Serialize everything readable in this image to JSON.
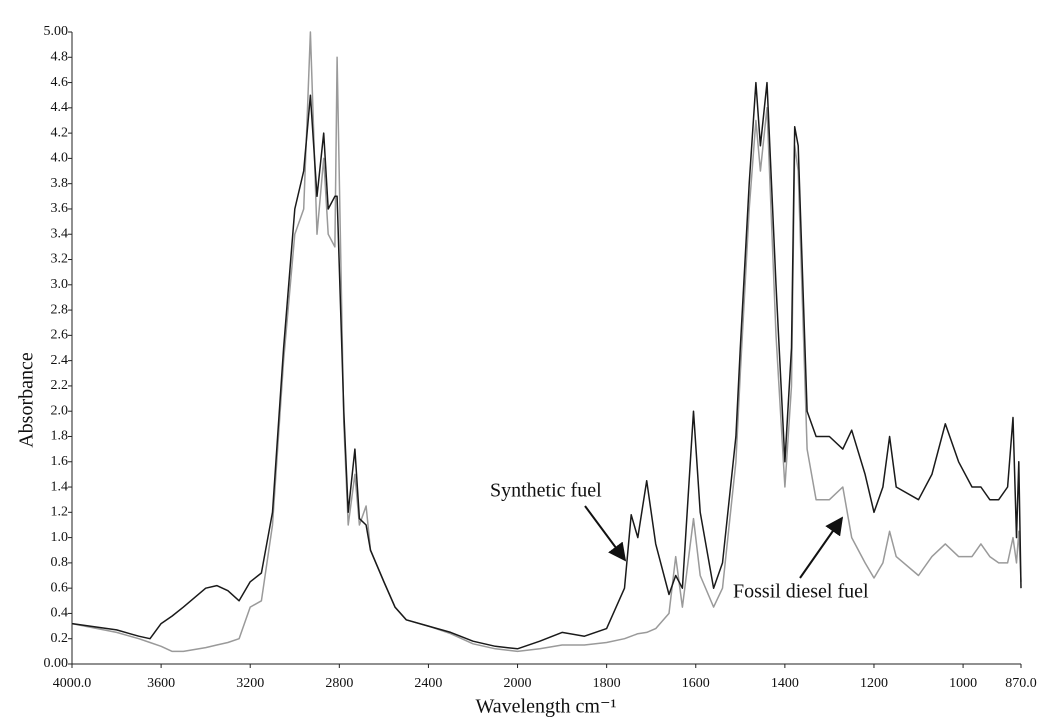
{
  "chart_data": {
    "type": "line",
    "x_label": "Wavelength cm⁻¹",
    "y_label": "Absorbance",
    "xlim": [
      4000,
      870
    ],
    "ylim": [
      0,
      5
    ],
    "x_scale_break": 2000,
    "xticks": [
      {
        "value": 4000,
        "label": "4000.0"
      },
      3600,
      3200,
      2800,
      2400,
      2000,
      1800,
      1600,
      1400,
      1200,
      1000,
      {
        "value": 870,
        "label": "870.0"
      }
    ],
    "yticks": [
      {
        "value": 0,
        "label": "0.00"
      },
      0.2,
      0.4,
      0.6,
      0.8,
      {
        "value": 1,
        "label": "1.0"
      },
      1.2,
      1.4,
      1.6,
      1.8,
      {
        "value": 2,
        "label": "2.0"
      },
      2.2,
      2.4,
      2.6,
      2.8,
      {
        "value": 3,
        "label": "3.0"
      },
      3.2,
      3.4,
      3.6,
      3.8,
      {
        "value": 4,
        "label": "4.0"
      },
      4.2,
      4.4,
      4.6,
      4.8,
      {
        "value": 5,
        "label": "5.00"
      }
    ],
    "x": [
      4000,
      3800,
      3700,
      3650,
      3600,
      3550,
      3500,
      3400,
      3350,
      3300,
      3250,
      3200,
      3150,
      3100,
      3050,
      3000,
      2960,
      2930,
      2900,
      2870,
      2850,
      2820,
      2810,
      2780,
      2760,
      2730,
      2710,
      2680,
      2660,
      2600,
      2550,
      2500,
      2400,
      2300,
      2200,
      2100,
      2000,
      1950,
      1900,
      1850,
      1800,
      1760,
      1745,
      1730,
      1710,
      1690,
      1660,
      1645,
      1630,
      1605,
      1590,
      1560,
      1540,
      1510,
      1500,
      1480,
      1465,
      1455,
      1440,
      1420,
      1400,
      1385,
      1378,
      1370,
      1350,
      1330,
      1300,
      1270,
      1250,
      1220,
      1200,
      1180,
      1165,
      1150,
      1100,
      1070,
      1040,
      1010,
      980,
      960,
      940,
      920,
      900,
      888,
      880,
      875,
      870
    ],
    "series": [
      {
        "name": "Fossil diesel fuel",
        "color": "#9a9a9a",
        "values": [
          0.32,
          0.25,
          0.2,
          0.17,
          0.14,
          0.1,
          0.1,
          0.13,
          0.15,
          0.17,
          0.2,
          0.45,
          0.5,
          1.1,
          2.4,
          3.4,
          3.6,
          5.0,
          3.4,
          4.0,
          3.4,
          3.3,
          4.8,
          1.9,
          1.1,
          1.5,
          1.1,
          1.25,
          0.9,
          0.65,
          0.45,
          0.35,
          0.3,
          0.24,
          0.16,
          0.12,
          0.1,
          0.12,
          0.15,
          0.15,
          0.17,
          0.2,
          0.22,
          0.24,
          0.25,
          0.28,
          0.4,
          0.85,
          0.45,
          1.15,
          0.7,
          0.45,
          0.6,
          1.6,
          2.3,
          3.6,
          4.3,
          3.9,
          4.4,
          2.6,
          1.4,
          2.2,
          4.1,
          3.9,
          1.7,
          1.3,
          1.3,
          1.4,
          1.0,
          0.8,
          0.68,
          0.8,
          1.05,
          0.85,
          0.7,
          0.85,
          0.95,
          0.85,
          0.85,
          0.95,
          0.85,
          0.8,
          0.8,
          1.0,
          0.8,
          1.05,
          0.65
        ]
      },
      {
        "name": "Synthetic fuel",
        "color": "#1a1a1a",
        "values": [
          0.32,
          0.27,
          0.22,
          0.2,
          0.32,
          0.38,
          0.45,
          0.6,
          0.62,
          0.58,
          0.5,
          0.65,
          0.72,
          1.2,
          2.5,
          3.6,
          3.9,
          4.5,
          3.7,
          4.2,
          3.6,
          3.7,
          3.7,
          2.0,
          1.2,
          1.7,
          1.15,
          1.1,
          0.9,
          0.65,
          0.45,
          0.35,
          0.3,
          0.25,
          0.18,
          0.14,
          0.12,
          0.18,
          0.25,
          0.22,
          0.28,
          0.6,
          1.18,
          1.0,
          1.45,
          0.95,
          0.55,
          0.7,
          0.6,
          2.0,
          1.2,
          0.6,
          0.8,
          1.8,
          2.5,
          3.8,
          4.6,
          4.1,
          4.6,
          3.0,
          1.6,
          2.5,
          4.25,
          4.1,
          2.0,
          1.8,
          1.8,
          1.7,
          1.85,
          1.5,
          1.2,
          1.4,
          1.8,
          1.4,
          1.3,
          1.5,
          1.9,
          1.6,
          1.4,
          1.4,
          1.3,
          1.3,
          1.4,
          1.95,
          1.0,
          1.6,
          0.6
        ]
      }
    ]
  }
}
